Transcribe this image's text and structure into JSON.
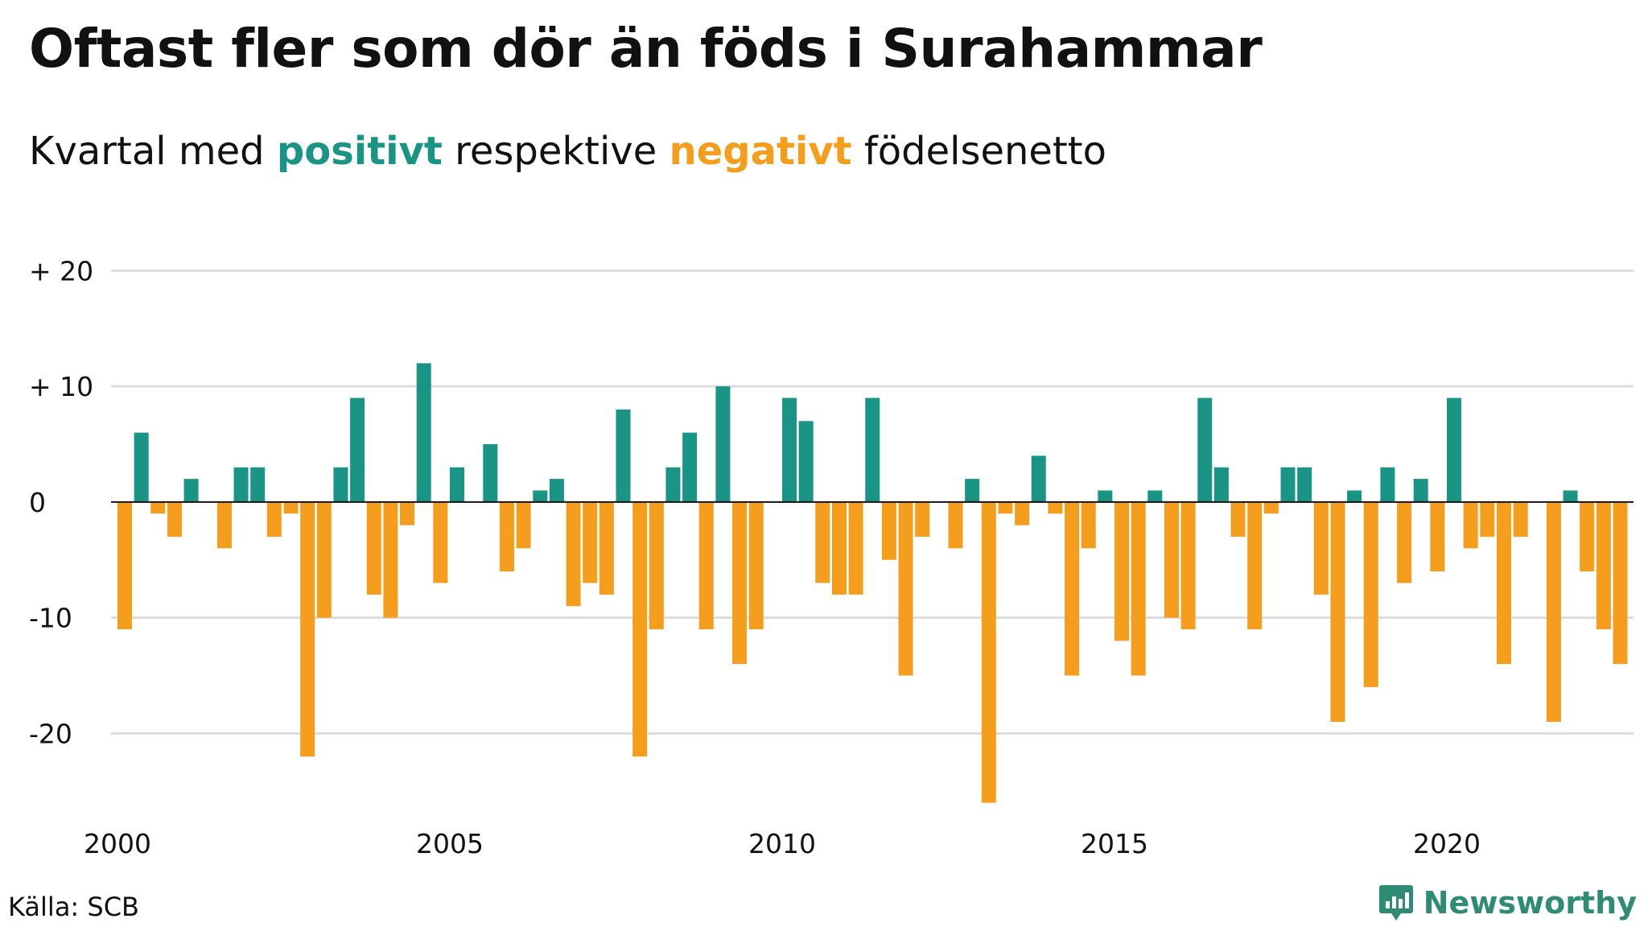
{
  "title": "Oftast fler som dör än föds i Surahammar",
  "subtitle": {
    "part1": "Kvartal med ",
    "positive_word": "positivt",
    "part2": " respektive ",
    "negative_word": "negativt",
    "part3": " födelsenetto"
  },
  "source": "Källa: SCB",
  "brand": "Newsworthy",
  "colors": {
    "positive": "#1a9585",
    "negative": "#f59d1c",
    "grid": "#dddddd",
    "axis": "#111111",
    "brand": "#2e8b74"
  },
  "chart_data": {
    "type": "bar",
    "x_start": "2000 Q1",
    "x_ticks": [
      "2000",
      "2005",
      "2010",
      "2015",
      "2020"
    ],
    "y_ticks": [
      {
        "value": 20,
        "label": "+ 20"
      },
      {
        "value": 10,
        "label": "+ 10"
      },
      {
        "value": 0,
        "label": "0"
      },
      {
        "value": -10,
        "label": "-10"
      },
      {
        "value": -20,
        "label": "-20"
      }
    ],
    "ylim": [
      -27,
      21
    ],
    "grid": true,
    "values": [
      -11,
      6,
      -1,
      -3,
      2,
      0,
      -4,
      3,
      3,
      -3,
      -1,
      -22,
      -10,
      3,
      9,
      -8,
      -10,
      -2,
      12,
      -7,
      3,
      0,
      5,
      -6,
      -4,
      1,
      2,
      -9,
      -7,
      -8,
      8,
      -22,
      -11,
      3,
      6,
      -11,
      10,
      -14,
      -11,
      0,
      9,
      7,
      -7,
      -8,
      -8,
      9,
      -5,
      -15,
      -3,
      0,
      -4,
      2,
      -26,
      -1,
      -2,
      4,
      -1,
      -15,
      -4,
      1,
      -12,
      -15,
      1,
      -10,
      -11,
      9,
      3,
      -3,
      -11,
      -1,
      3,
      3,
      -8,
      -19,
      1,
      -16,
      3,
      -7,
      2,
      -6,
      9,
      -4,
      -3,
      -14,
      -3,
      0,
      -19,
      1,
      -6,
      -11,
      -14
    ]
  }
}
